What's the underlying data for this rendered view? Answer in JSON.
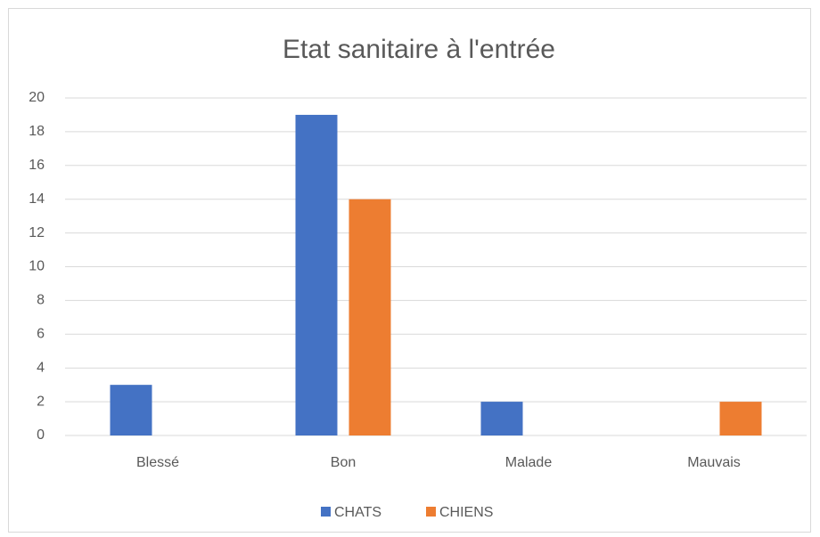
{
  "chart_data": {
    "type": "bar",
    "title": "Etat sanitaire à l'entrée",
    "categories": [
      "Blessé",
      "Bon",
      "Malade",
      "Mauvais"
    ],
    "series": [
      {
        "name": "CHATS",
        "color": "#4472c4",
        "values": [
          3,
          19,
          2,
          0
        ]
      },
      {
        "name": "CHIENS",
        "color": "#ed7d31",
        "values": [
          0,
          14,
          0,
          2
        ]
      }
    ],
    "ylim": [
      0,
      20
    ],
    "yticks": [
      0,
      2,
      4,
      6,
      8,
      10,
      12,
      14,
      16,
      18,
      20
    ],
    "grid": true,
    "legend": "bottom"
  }
}
